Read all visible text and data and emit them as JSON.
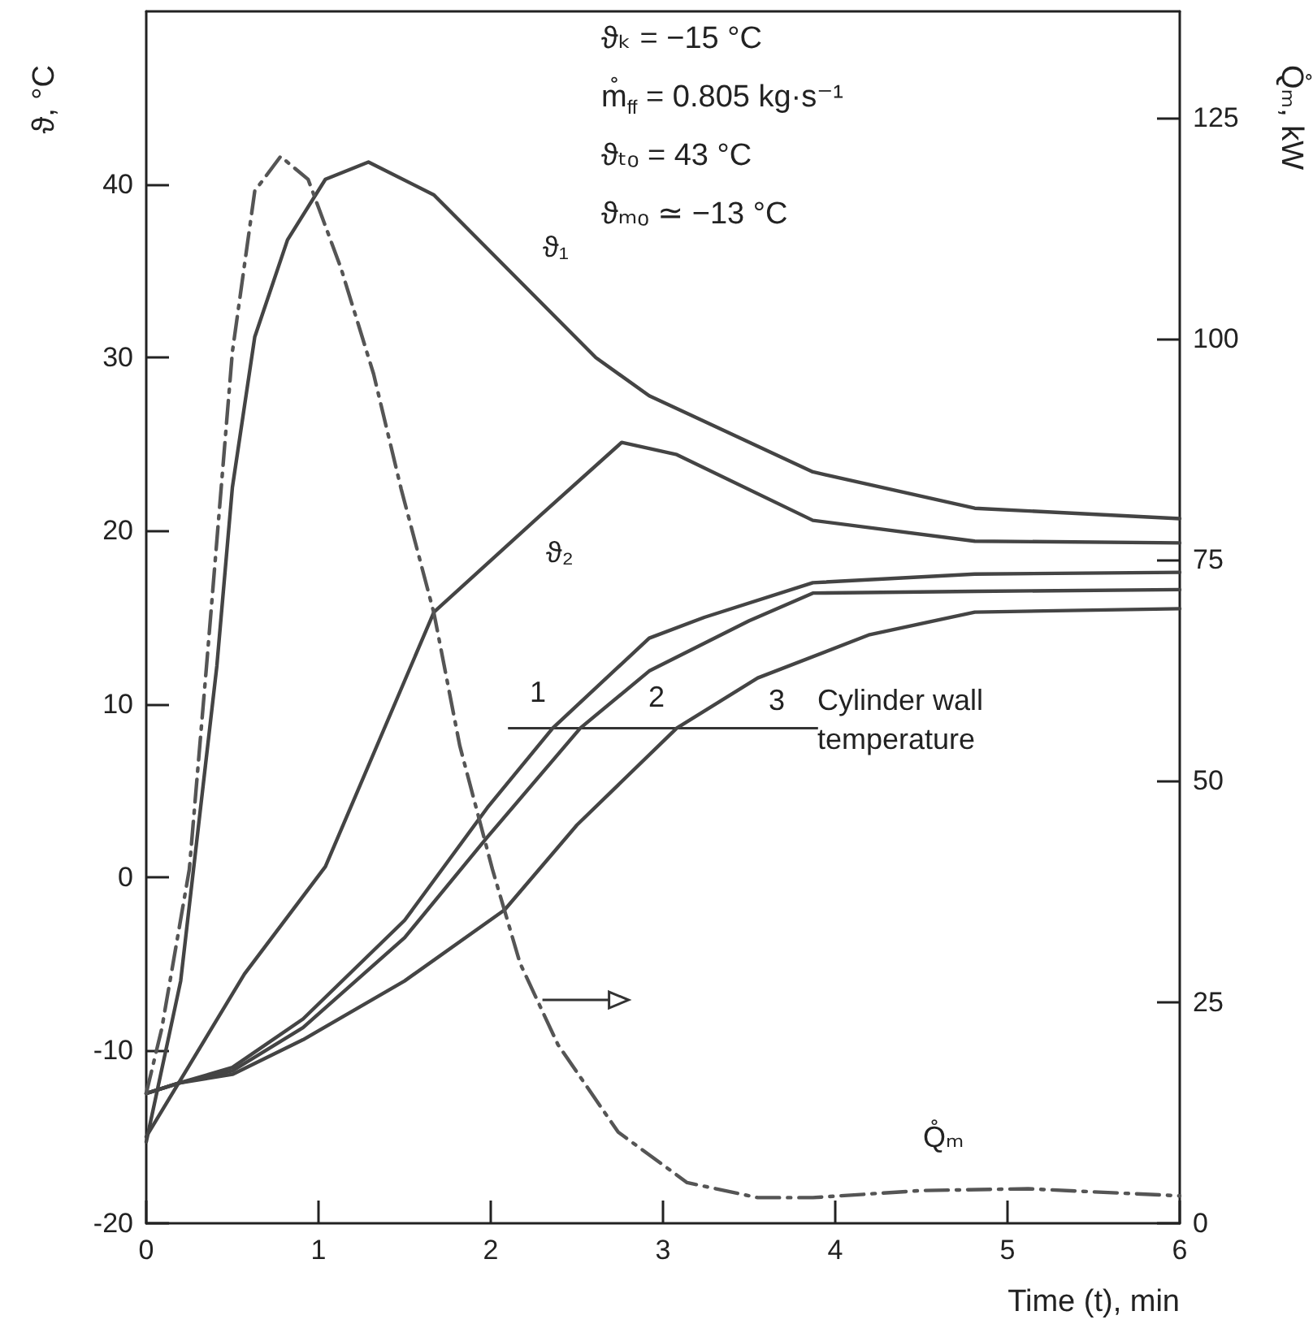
{
  "chart_data": {
    "type": "line",
    "xlabel": "Time (t), min",
    "ylabel": "ϑ, °C",
    "y2label": "Q̊ₘ, kW",
    "xlim": [
      0,
      6
    ],
    "xticks": [
      0,
      1,
      2,
      3,
      4,
      5,
      6
    ],
    "ylim": [
      -20,
      50
    ],
    "yticks": [
      -20,
      -10,
      0,
      10,
      20,
      30,
      40
    ],
    "y2lim": [
      0,
      137
    ],
    "y2ticks": [
      0,
      25,
      50,
      75,
      100,
      125
    ],
    "grid": false,
    "series": [
      {
        "color": "#444444",
        "x": [
          0,
          0.2,
          0.41,
          0.5,
          0.63,
          0.82,
          1.04,
          1.29,
          1.67,
          2.17,
          2.61,
          2.92,
          3.87,
          4.81,
          6
        ],
        "values": [
          -15.3,
          -6,
          12.2,
          22.5,
          31.2,
          36.8,
          40.3,
          41.3,
          39.4,
          34.4,
          30,
          27.8,
          23.4,
          21.3,
          20.7
        ]
      },
      {
        "color": "#444444",
        "x": [
          0,
          0.57,
          1.04,
          1.67,
          2.29,
          2.76,
          3.08,
          3.87,
          4.81,
          6
        ],
        "values": [
          -15,
          -5.6,
          0.6,
          15.3,
          20.9,
          25.1,
          24.4,
          20.6,
          19.4,
          19.3
        ]
      },
      {
        "color": "#444444",
        "x": [
          0,
          0.19,
          0.5,
          0.91,
          1.5,
          1.98,
          2.36,
          2.92,
          3.24,
          3.87,
          4.81,
          6
        ],
        "values": [
          -12.5,
          -11.9,
          -11,
          -8.2,
          -2.5,
          4,
          8.6,
          13.8,
          15,
          17,
          17.5,
          17.6
        ]
      },
      {
        "color": "#444444",
        "x": [
          0,
          0.19,
          0.5,
          0.91,
          1.5,
          1.98,
          2.52,
          2.92,
          3.5,
          3.87,
          4.81,
          6
        ],
        "values": [
          -12.5,
          -11.9,
          -11.2,
          -8.7,
          -3.5,
          2.3,
          8.6,
          11.9,
          14.8,
          16.4,
          16.5,
          16.6
        ]
      },
      {
        "color": "#444444",
        "x": [
          0,
          0.19,
          0.5,
          0.91,
          1.5,
          2.08,
          2.5,
          3.08,
          3.55,
          4.2,
          4.81,
          6
        ],
        "values": [
          -12.5,
          -11.9,
          -11.4,
          -9.4,
          -6,
          -1.9,
          3,
          8.6,
          11.5,
          14,
          15.3,
          15.5
        ]
      },
      {
        "color": "#555555",
        "axis": "y2",
        "line_style": "dashed",
        "x": [
          0,
          0.09,
          0.25,
          0.35,
          0.5,
          0.63,
          0.78,
          0.94,
          1.13,
          1.32,
          1.48,
          1.67,
          1.82,
          2.01,
          2.17,
          2.39,
          2.74,
          3.14,
          3.55,
          3.87,
          4.5,
          5.12,
          6
        ],
        "values": [
          14.7,
          22,
          40,
          63,
          98.5,
          116.7,
          120.6,
          118,
          108,
          96,
          83,
          69,
          54,
          40,
          29.4,
          20.2,
          10.3,
          4.6,
          2.9,
          2.9,
          3.7,
          3.9,
          3.1
        ]
      }
    ],
    "annotations": [
      "ϑₖ = −15 °C",
      "m̊$_{ff}$ = 0.805 kg·s⁻¹",
      "ϑₜₒ = 43 °C",
      "ϑₘₒ ≃ −13 °C",
      "ϑ₁",
      "ϑ₂",
      "1",
      "2",
      "3",
      "Cylinder wall temperature",
      "Q̊ₘ"
    ]
  }
}
